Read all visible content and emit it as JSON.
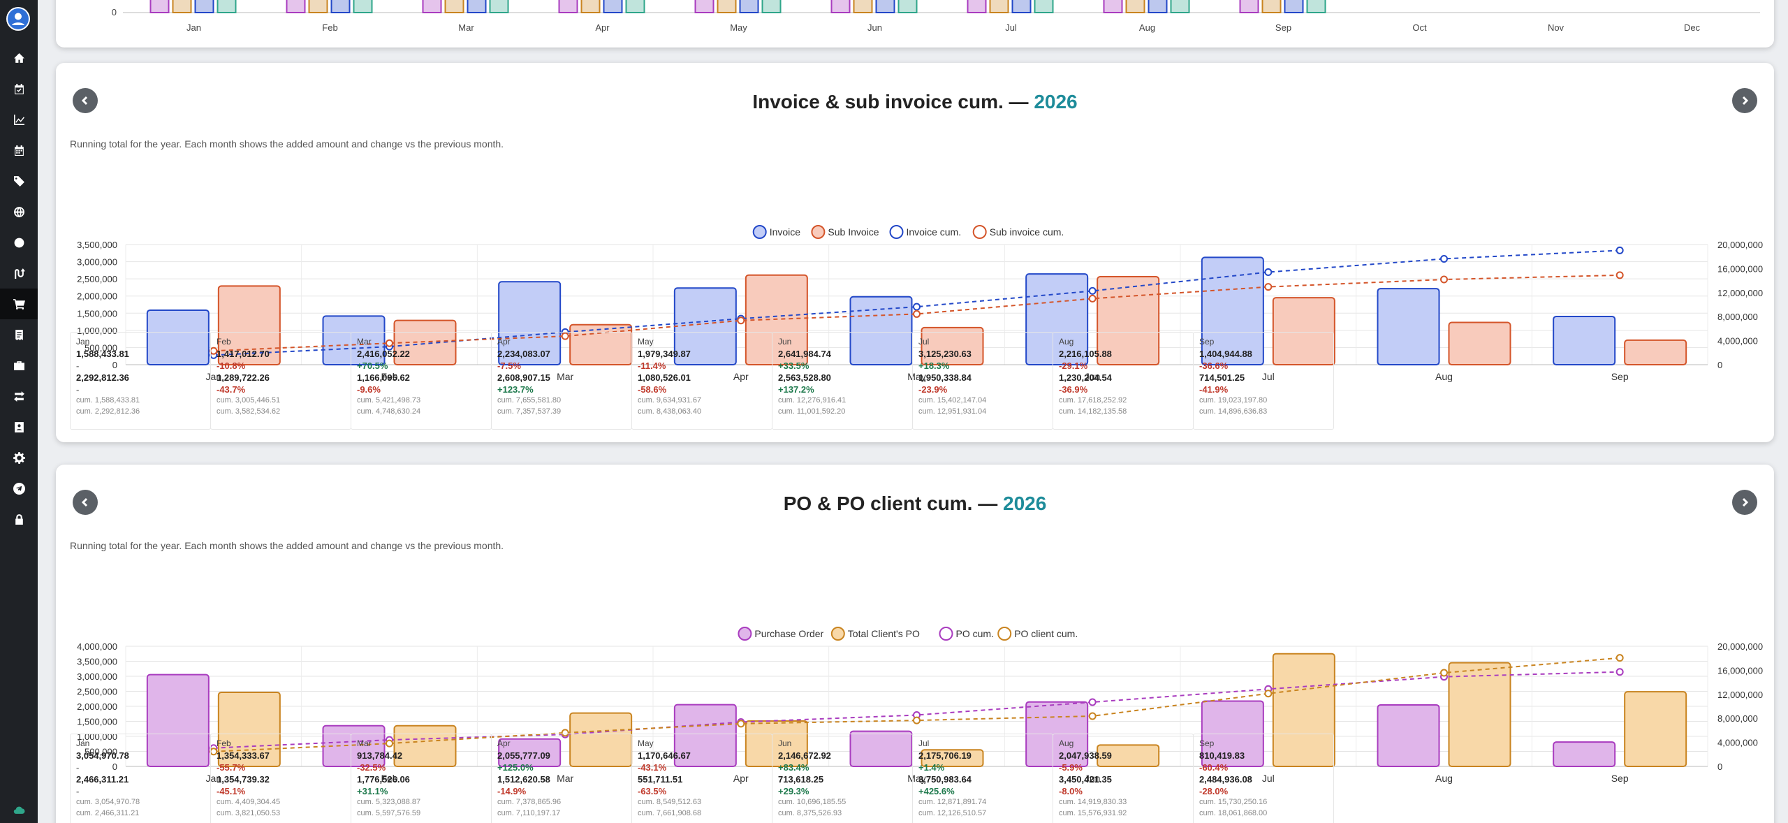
{
  "colors": {
    "accent": "#1e8c9a",
    "sidebar": "#1f2226"
  },
  "sidebar": {
    "icons": [
      "avatar-icon",
      "home-icon",
      "calendar-check-icon",
      "chart-line-icon",
      "calendar-icon",
      "tag-icon",
      "globe-icon",
      "circle-icon",
      "route-icon",
      "cart-icon",
      "receipt-icon",
      "briefcase-icon",
      "exchange-icon",
      "contact-icon",
      "gear-icon",
      "send-icon",
      "lock-icon",
      "cloud-icon"
    ],
    "active": "cart-icon"
  },
  "top_chart": {
    "y_zero": "0",
    "months": [
      "Jan",
      "Feb",
      "Mar",
      "Apr",
      "May",
      "Jun",
      "Jul",
      "Aug",
      "Sep",
      "Oct",
      "Nov",
      "Dec"
    ]
  },
  "cards": [
    {
      "title": "Invoice & sub invoice cum. —",
      "year": "2026",
      "subtitle": "Running total for the year. Each month shows the added amount and change vs the previous month.",
      "legend": [
        "Invoice",
        "Sub Invoice",
        "Invoice cum.",
        "Sub invoice cum."
      ],
      "chart_data": {
        "type": "bar",
        "categories": [
          "Jan",
          "Feb",
          "Mar",
          "Apr",
          "May",
          "Jun",
          "Jul",
          "Aug",
          "Sep"
        ],
        "series": [
          {
            "name": "Invoice",
            "kind": "bar",
            "axis": "left",
            "color": "#2348c8",
            "fill": "#c2cdf7",
            "values": [
              1588433.81,
              1417012.7,
              2416052.22,
              2234083.07,
              1979349.87,
              2641984.74,
              3125230.63,
              2216105.88,
              1404944.88
            ]
          },
          {
            "name": "Sub Invoice",
            "kind": "bar",
            "axis": "left",
            "color": "#d4552a",
            "fill": "#f8cbbc",
            "values": [
              2292812.36,
              1289722.26,
              1166095.62,
              2608907.15,
              1080526.01,
              2563528.8,
              1950338.84,
              1230204.54,
              714501.25
            ]
          },
          {
            "name": "Invoice cum.",
            "kind": "line",
            "axis": "right",
            "color": "#2348c8",
            "values": [
              1588433.81,
              3005446.51,
              5421498.73,
              7655581.8,
              9634931.67,
              12276916.41,
              15402147.04,
              17618252.92,
              19023197.8
            ]
          },
          {
            "name": "Sub invoice cum.",
            "kind": "line",
            "axis": "right",
            "color": "#d4552a",
            "values": [
              2292812.36,
              3582534.62,
              4748630.24,
              7357537.39,
              8438063.4,
              11001592.2,
              12951931.04,
              14182135.58,
              14896636.83
            ]
          }
        ],
        "left_ticks": [
          "0",
          "500,000",
          "1,000,000",
          "1,500,000",
          "2,000,000",
          "2,500,000",
          "3,000,000",
          "3,500,000"
        ],
        "left_max": 3500000,
        "right_ticks": [
          "0",
          "4,000,000",
          "8,000,000",
          "12,000,000",
          "16,000,000",
          "20,000,000"
        ],
        "right_max": 20000000
      },
      "summary": [
        {
          "month": "Jan",
          "a": "1,588,433.81",
          "ap": "-",
          "b": "2,292,812.36",
          "bp": "-",
          "ca": "cum. 1,588,433.81",
          "cb": "cum. 2,292,812.36"
        },
        {
          "month": "Feb",
          "a": "1,417,012.70",
          "ap": "-10.8%",
          "b": "1,289,722.26",
          "bp": "-43.7%",
          "ca": "cum. 3,005,446.51",
          "cb": "cum. 3,582,534.62"
        },
        {
          "month": "Mar",
          "a": "2,416,052.22",
          "ap": "+70.5%",
          "b": "1,166,095.62",
          "bp": "-9.6%",
          "ca": "cum. 5,421,498.73",
          "cb": "cum. 4,748,630.24"
        },
        {
          "month": "Apr",
          "a": "2,234,083.07",
          "ap": "-7.5%",
          "b": "2,608,907.15",
          "bp": "+123.7%",
          "ca": "cum. 7,655,581.80",
          "cb": "cum. 7,357,537.39"
        },
        {
          "month": "May",
          "a": "1,979,349.87",
          "ap": "-11.4%",
          "b": "1,080,526.01",
          "bp": "-58.6%",
          "ca": "cum. 9,634,931.67",
          "cb": "cum. 8,438,063.40"
        },
        {
          "month": "Jun",
          "a": "2,641,984.74",
          "ap": "+33.5%",
          "b": "2,563,528.80",
          "bp": "+137.2%",
          "ca": "cum. 12,276,916.41",
          "cb": "cum. 11,001,592.20"
        },
        {
          "month": "Jul",
          "a": "3,125,230.63",
          "ap": "+18.3%",
          "b": "1,950,338.84",
          "bp": "-23.9%",
          "ca": "cum. 15,402,147.04",
          "cb": "cum. 12,951,931.04"
        },
        {
          "month": "Aug",
          "a": "2,216,105.88",
          "ap": "-29.1%",
          "b": "1,230,204.54",
          "bp": "-36.9%",
          "ca": "cum. 17,618,252.92",
          "cb": "cum. 14,182,135.58"
        },
        {
          "month": "Sep",
          "a": "1,404,944.88",
          "ap": "-36.6%",
          "b": "714,501.25",
          "bp": "-41.9%",
          "ca": "cum. 19,023,197.80",
          "cb": "cum. 14,896,636.83"
        }
      ]
    },
    {
      "title": "PO & PO client cum. —",
      "year": "2026",
      "subtitle": "Running total for the year. Each month shows the added amount and change vs the previous month.",
      "legend": [
        "Purchase Order",
        "Total Client's PO",
        "PO cum.",
        "PO client cum."
      ],
      "chart_data": {
        "type": "bar",
        "categories": [
          "Jan",
          "Feb",
          "Mar",
          "Apr",
          "May",
          "Jun",
          "Jul",
          "Aug",
          "Sep"
        ],
        "series": [
          {
            "name": "Purchase Order",
            "kind": "bar",
            "axis": "left",
            "color": "#a93cbf",
            "fill": "#e0b5ea",
            "values": [
              3054970.78,
              1354333.67,
              913784.42,
              2055777.09,
              1170646.67,
              2146672.92,
              2175706.19,
              2047938.59,
              810419.83
            ]
          },
          {
            "name": "Total Client's PO",
            "kind": "bar",
            "axis": "left",
            "color": "#c98420",
            "fill": "#f8d8a8",
            "values": [
              2466311.21,
              1354739.32,
              1776526.06,
              1512620.58,
              551711.51,
              713618.25,
              3750983.64,
              3450421.35,
              2484936.08
            ]
          },
          {
            "name": "PO cum.",
            "kind": "line",
            "axis": "right",
            "color": "#a93cbf",
            "values": [
              3054970.78,
              4409304.45,
              5323088.87,
              7378865.96,
              8549512.63,
              10696185.55,
              12871891.74,
              14919830.33,
              15730250.16
            ]
          },
          {
            "name": "PO client cum.",
            "kind": "line",
            "axis": "right",
            "color": "#c98420",
            "values": [
              2466311.21,
              3821050.53,
              5597576.59,
              7110197.17,
              7661908.68,
              8375526.93,
              12126510.57,
              15576931.92,
              18061868.0
            ]
          }
        ],
        "left_ticks": [
          "0",
          "500,000",
          "1,000,000",
          "1,500,000",
          "2,000,000",
          "2,500,000",
          "3,000,000",
          "3,500,000",
          "4,000,000"
        ],
        "left_max": 4000000,
        "right_ticks": [
          "0",
          "4,000,000",
          "8,000,000",
          "12,000,000",
          "16,000,000",
          "20,000,000"
        ],
        "right_max": 20000000
      },
      "summary": [
        {
          "month": "Jan",
          "a": "3,054,970.78",
          "ap": "-",
          "b": "2,466,311.21",
          "bp": "-",
          "ca": "cum. 3,054,970.78",
          "cb": "cum. 2,466,311.21"
        },
        {
          "month": "Feb",
          "a": "1,354,333.67",
          "ap": "-55.7%",
          "b": "1,354,739.32",
          "bp": "-45.1%",
          "ca": "cum. 4,409,304.45",
          "cb": "cum. 3,821,050.53"
        },
        {
          "month": "Mar",
          "a": "913,784.42",
          "ap": "-32.5%",
          "b": "1,776,526.06",
          "bp": "+31.1%",
          "ca": "cum. 5,323,088.87",
          "cb": "cum. 5,597,576.59"
        },
        {
          "month": "Apr",
          "a": "2,055,777.09",
          "ap": "+125.0%",
          "b": "1,512,620.58",
          "bp": "-14.9%",
          "ca": "cum. 7,378,865.96",
          "cb": "cum. 7,110,197.17"
        },
        {
          "month": "May",
          "a": "1,170,646.67",
          "ap": "-43.1%",
          "b": "551,711.51",
          "bp": "-63.5%",
          "ca": "cum. 8,549,512.63",
          "cb": "cum. 7,661,908.68"
        },
        {
          "month": "Jun",
          "a": "2,146,672.92",
          "ap": "+83.4%",
          "b": "713,618.25",
          "bp": "+29.3%",
          "ca": "cum. 10,696,185.55",
          "cb": "cum. 8,375,526.93"
        },
        {
          "month": "Jul",
          "a": "2,175,706.19",
          "ap": "+1.4%",
          "b": "3,750,983.64",
          "bp": "+425.6%",
          "ca": "cum. 12,871,891.74",
          "cb": "cum. 12,126,510.57"
        },
        {
          "month": "Aug",
          "a": "2,047,938.59",
          "ap": "-5.9%",
          "b": "3,450,421.35",
          "bp": "-8.0%",
          "ca": "cum. 14,919,830.33",
          "cb": "cum. 15,576,931.92"
        },
        {
          "month": "Sep",
          "a": "810,419.83",
          "ap": "-60.4%",
          "b": "2,484,936.08",
          "bp": "-28.0%",
          "ca": "cum. 15,730,250.16",
          "cb": "cum. 18,061,868.00"
        }
      ]
    }
  ]
}
